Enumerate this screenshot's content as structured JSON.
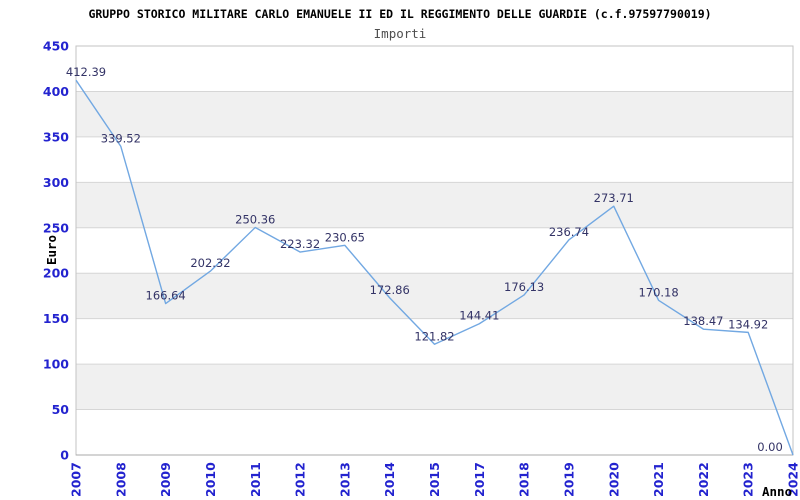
{
  "header": {
    "title": "GRUPPO STORICO MILITARE CARLO EMANUELE II ED IL REGGIMENTO DELLE GUARDIE (c.f.97597790019)",
    "subtitle": "Importi"
  },
  "chart_data": {
    "type": "line",
    "title": "GRUPPO STORICO MILITARE CARLO EMANUELE II ED IL REGGIMENTO DELLE GUARDIE (c.f.97597790019)",
    "subtitle": "Importi",
    "xlabel": "Anno",
    "ylabel": "Euro",
    "categories": [
      "2007",
      "2008",
      "2009",
      "2010",
      "2011",
      "2012",
      "2013",
      "2014",
      "2015",
      "2017",
      "2018",
      "2019",
      "2020",
      "2021",
      "2022",
      "2023",
      "2024"
    ],
    "values": [
      412.39,
      339.52,
      166.64,
      202.32,
      250.36,
      223.32,
      230.65,
      172.86,
      121.82,
      144.41,
      176.13,
      236.74,
      273.71,
      170.18,
      138.47,
      134.92,
      0.0
    ],
    "ylim": [
      0,
      450
    ],
    "ytick_step": 50,
    "grid": "horizontal",
    "legend": "none",
    "band_pattern": "alternating",
    "colors": {
      "line": "#72a8e2",
      "tick_label": "#2323cf",
      "data_label": "#333366",
      "band": "#f0f0f0",
      "gridline": "#d6d6d6",
      "border": "#c3c3c3",
      "baseline": "#a8a8a8",
      "title": "#000000",
      "subtitle": "#4f4f4f",
      "axis_title": "#000000",
      "background": "#ffffff"
    }
  }
}
